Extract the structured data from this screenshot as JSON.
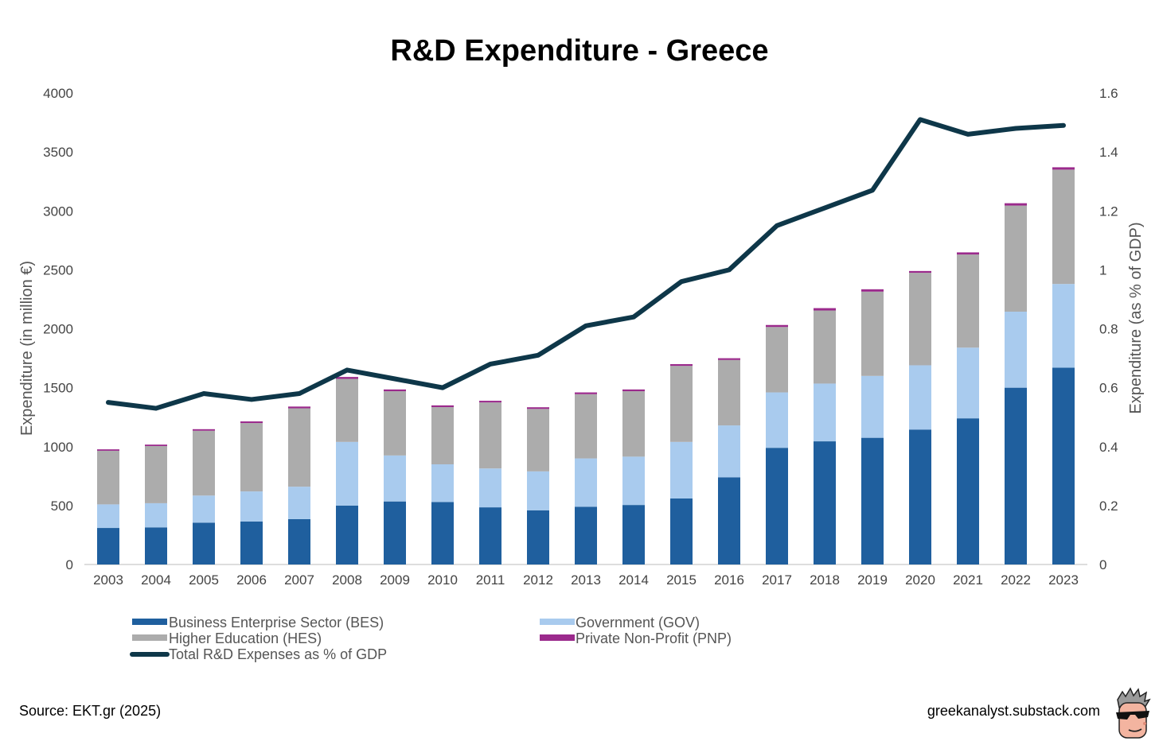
{
  "chart_data": {
    "type": "bar",
    "stacked": true,
    "title": "R&D Expenditure - Greece",
    "ylabel": "Expenditure (in million €)",
    "y2label": "Expenditure (as % of GDP)",
    "ylim": [
      0,
      4000
    ],
    "y2lim": [
      0,
      1.6
    ],
    "yticks": [
      "0",
      "500",
      "1000",
      "1500",
      "2000",
      "2500",
      "3000",
      "3500",
      "4000"
    ],
    "y2ticks": [
      "0",
      "0.2",
      "0.4",
      "0.6",
      "0.8",
      "1",
      "1.2",
      "1.4",
      "1.6"
    ],
    "categories": [
      "2003",
      "2004",
      "2005",
      "2006",
      "2007",
      "2008",
      "2009",
      "2010",
      "2011",
      "2012",
      "2013",
      "2014",
      "2015",
      "2016",
      "2017",
      "2018",
      "2019",
      "2020",
      "2021",
      "2022",
      "2023"
    ],
    "series": [
      {
        "name": "Business Enterprise Sector (BES)",
        "color": "#1f5f9e",
        "values": [
          310,
          315,
          355,
          365,
          385,
          500,
          535,
          530,
          485,
          460,
          490,
          505,
          560,
          740,
          990,
          1045,
          1075,
          1145,
          1240,
          1500,
          1670
        ]
      },
      {
        "name": "Government (GOV)",
        "color": "#a9cbee",
        "values": [
          200,
          205,
          230,
          255,
          275,
          540,
          390,
          320,
          330,
          330,
          410,
          410,
          480,
          440,
          470,
          490,
          525,
          545,
          600,
          645,
          710
        ]
      },
      {
        "name": "Higher Education (HES)",
        "color": "#acacac",
        "values": [
          455,
          485,
          550,
          580,
          665,
          535,
          545,
          485,
          560,
          530,
          545,
          555,
          645,
          555,
          555,
          620,
          715,
          785,
          790,
          900,
          970
        ]
      },
      {
        "name": "Private Non-Profit (PNP)",
        "color": "#9b2a8c",
        "values": [
          12,
          12,
          13,
          14,
          15,
          16,
          15,
          15,
          14,
          14,
          15,
          15,
          15,
          15,
          17,
          20,
          20,
          15,
          18,
          20,
          20
        ]
      }
    ],
    "line": {
      "name": "Total R&D Expenses as % of GDP",
      "color": "#0e3749",
      "values": [
        0.55,
        0.53,
        0.58,
        0.56,
        0.58,
        0.66,
        0.63,
        0.6,
        0.68,
        0.71,
        0.81,
        0.84,
        0.96,
        1.0,
        1.15,
        1.21,
        1.27,
        1.51,
        1.46,
        1.48,
        1.49
      ]
    },
    "grid": false,
    "legend": "bottom"
  },
  "footer": {
    "source": "Source: EKT.gr (2025)",
    "site": "greekanalyst.substack.com"
  },
  "icons": {
    "logo": "sunglasses-avatar-icon"
  }
}
